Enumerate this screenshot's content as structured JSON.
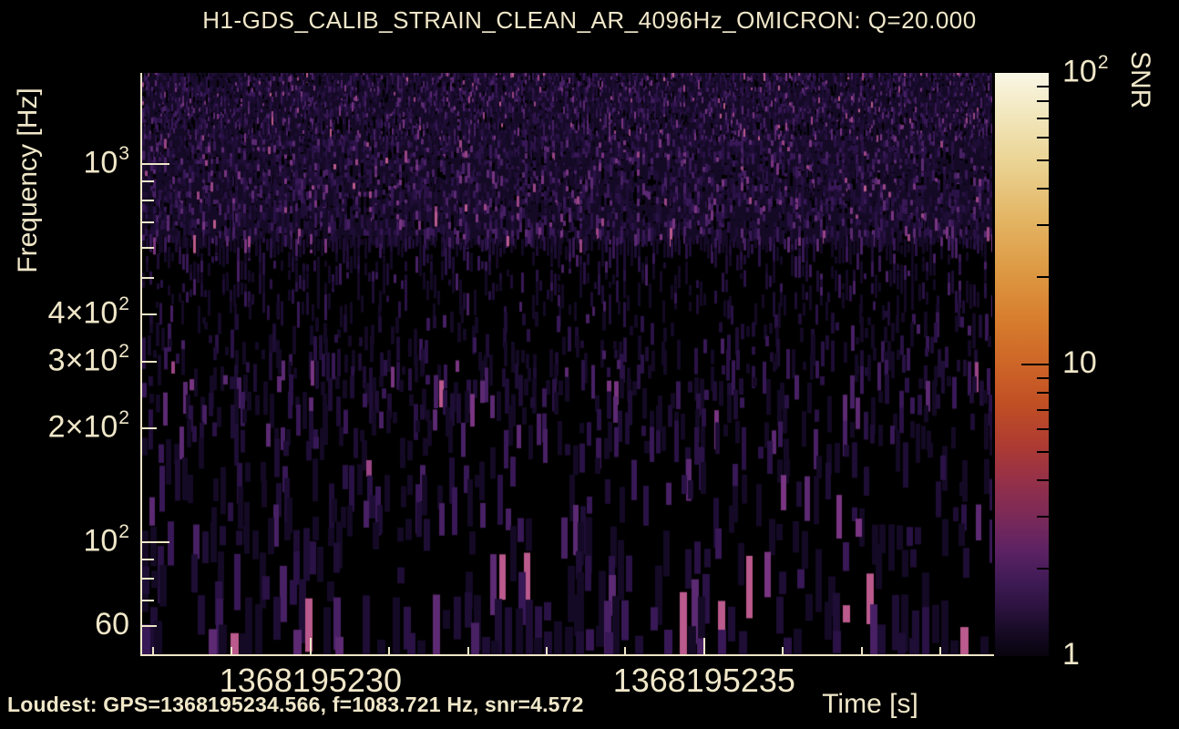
{
  "chart_data": {
    "type": "heatmap",
    "subtype": "omicron_q_transform_spectrogram",
    "title": "H1-GDS_CALIB_STRAIN_CLEAN_AR_4096Hz_OMICRON: Q=20.000",
    "xlabel": "Time [s]",
    "ylabel": "Frequency [Hz]",
    "colorbar_label": "SNR",
    "x_scale": "linear",
    "y_scale": "log",
    "color_scale": "log",
    "xlim_gps": [
      1368195227.86,
      1368195238.66
    ],
    "ylim_hz": [
      50,
      1740
    ],
    "snr_range": [
      1,
      100
    ],
    "x_major_ticks": [
      {
        "gps": 1368195230,
        "label": "1368195230"
      },
      {
        "gps": 1368195235,
        "label": "1368195235"
      }
    ],
    "x_minor_ticks_gps": [
      1368195228,
      1368195229,
      1368195231,
      1368195232,
      1368195233,
      1368195234,
      1368195236,
      1368195237,
      1368195238
    ],
    "y_ticks": [
      {
        "hz": 1000,
        "pre": "10",
        "sup": "3",
        "size": "major"
      },
      {
        "hz": 400,
        "pre": "4×10",
        "sup": "2",
        "size": "mid"
      },
      {
        "hz": 300,
        "pre": "3×10",
        "sup": "2",
        "size": "mid"
      },
      {
        "hz": 200,
        "pre": "2×10",
        "sup": "2",
        "size": "mid"
      },
      {
        "hz": 100,
        "pre": "10",
        "sup": "2",
        "size": "major"
      },
      {
        "hz": 60,
        "pre": "60",
        "sup": "",
        "size": "mid"
      }
    ],
    "y_minor_ticks_hz": [
      900,
      800,
      700,
      600,
      500,
      90,
      80,
      70
    ],
    "colorbar_ticks": [
      {
        "snr": 100,
        "pre": "10",
        "sup": "2",
        "draw_tick": false
      },
      {
        "snr": 10,
        "pre": "10",
        "sup": "",
        "draw_tick": true
      },
      {
        "snr": 1,
        "pre": "1",
        "sup": "",
        "draw_tick": false
      }
    ],
    "colorbar_minor_ticks_snr": [
      90,
      80,
      70,
      60,
      50,
      40,
      30,
      20,
      9,
      8,
      7,
      6,
      5,
      4,
      3,
      2
    ],
    "colorbar_gradient_stops": [
      {
        "pos": 0,
        "color": "#f9f6e5"
      },
      {
        "pos": 7,
        "color": "#f2e7bd"
      },
      {
        "pos": 15,
        "color": "#ebd495"
      },
      {
        "pos": 25,
        "color": "#e3b564"
      },
      {
        "pos": 33,
        "color": "#de9c46"
      },
      {
        "pos": 42,
        "color": "#d77e2e"
      },
      {
        "pos": 50,
        "color": "#cd6527"
      },
      {
        "pos": 57,
        "color": "#c04e24"
      },
      {
        "pos": 64,
        "color": "#ad3b33"
      },
      {
        "pos": 70,
        "color": "#953049"
      },
      {
        "pos": 76,
        "color": "#7b2a58"
      },
      {
        "pos": 82,
        "color": "#5c2263"
      },
      {
        "pos": 87,
        "color": "#401b56"
      },
      {
        "pos": 92,
        "color": "#2a123d"
      },
      {
        "pos": 96,
        "color": "#160a24"
      },
      {
        "pos": 100,
        "color": "#08040e"
      }
    ],
    "tile_palette": [
      {
        "upto": 0.45,
        "color": "#150a26"
      },
      {
        "upto": 0.66,
        "color": "#1e0d35"
      },
      {
        "upto": 0.79,
        "color": "#2a1246"
      },
      {
        "upto": 0.88,
        "color": "#381856"
      },
      {
        "upto": 0.94,
        "color": "#482064"
      },
      {
        "upto": 0.972,
        "color": "#5c2a72"
      },
      {
        "upto": 0.988,
        "color": "#793581"
      },
      {
        "upto": 0.996,
        "color": "#9a4585"
      },
      {
        "upto": 1.01,
        "color": "#bb5a8d"
      }
    ],
    "loudest": {
      "gps": 1368195234.566,
      "frequency_hz": 1083.721,
      "snr": 4.572
    },
    "content_summary": "Background-noise Q-scan: dense dark-purple vertical low-SNR tiles (SNR below ~4.6) over black; tiles are fine and dense at high frequency, wider and sparser at low frequency; no loud trigger visible."
  },
  "annotations": {
    "loudest_text": "Loudest: GPS=1368195234.566, f=1083.721 Hz, snr=4.572"
  },
  "colors": {
    "background": "#000000",
    "text": "#f0e7c9",
    "axis": "#efe6c8",
    "colorbar_tick": "#000000"
  }
}
